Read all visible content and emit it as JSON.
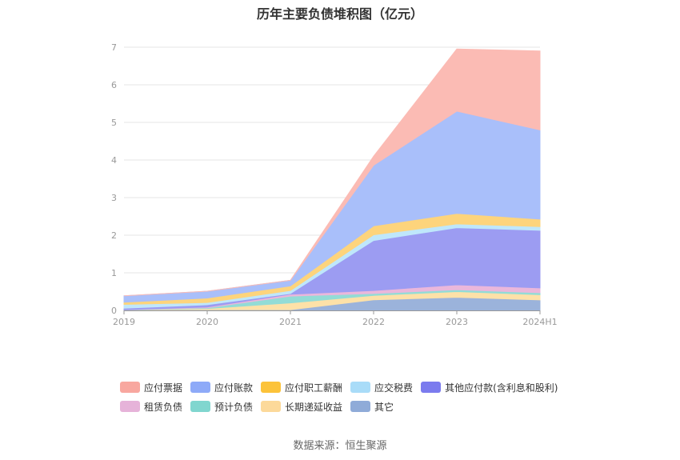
{
  "chart_data": {
    "type": "area",
    "stacked": true,
    "title": "历年主要负债堆积图（亿元）",
    "x": [
      "2019",
      "2020",
      "2021",
      "2022",
      "2023",
      "2024H1"
    ],
    "ylim": [
      0,
      7
    ],
    "yticks": [
      0,
      1,
      2,
      3,
      4,
      5,
      6,
      7
    ],
    "grid": true,
    "legend_position": "bottom",
    "series": [
      {
        "name": "其它",
        "color": "#9bb3db",
        "values": [
          0.02,
          0.02,
          0.02,
          0.28,
          0.35,
          0.28
        ]
      },
      {
        "name": "长期递延收益",
        "color": "#fde1a8",
        "values": [
          0.0,
          0.03,
          0.18,
          0.12,
          0.15,
          0.14
        ]
      },
      {
        "name": "预计负债",
        "color": "#93dcd6",
        "values": [
          0.0,
          0.02,
          0.18,
          0.05,
          0.05,
          0.05
        ]
      },
      {
        "name": "租赁负债",
        "color": "#eab7db",
        "values": [
          0.0,
          0.02,
          0.05,
          0.08,
          0.13,
          0.13
        ]
      },
      {
        "name": "其他应付款(含利息和股利)",
        "color": "#9c9cf2",
        "values": [
          0.04,
          0.06,
          0.02,
          1.33,
          1.52,
          1.53
        ]
      },
      {
        "name": "应交税费",
        "color": "#bfe7fb",
        "values": [
          0.1,
          0.06,
          0.08,
          0.15,
          0.1,
          0.1
        ]
      },
      {
        "name": "应付职工薪酬",
        "color": "#fdd47c",
        "values": [
          0.06,
          0.12,
          0.12,
          0.24,
          0.28,
          0.2
        ]
      },
      {
        "name": "应付账款",
        "color": "#a9bffa",
        "values": [
          0.17,
          0.18,
          0.15,
          1.61,
          2.72,
          2.37
        ]
      },
      {
        "name": "应付票据",
        "color": "#fbbbb4",
        "values": [
          0.0,
          0.0,
          0.0,
          0.24,
          1.65,
          2.1
        ]
      }
    ]
  },
  "legend": {
    "rows": [
      [
        {
          "name": "应付票据",
          "color": "#f8a79f"
        },
        {
          "name": "应付账款",
          "color": "#8eaaf8"
        },
        {
          "name": "应付职工薪酬",
          "color": "#fcc33a"
        },
        {
          "name": "应交税费",
          "color": "#a9dcf8"
        },
        {
          "name": "其他应付款(含利息和股利)",
          "color": "#7b7bee"
        }
      ],
      [
        {
          "name": "租赁负债",
          "color": "#e6b3d9"
        },
        {
          "name": "预计负债",
          "color": "#80d6cf"
        },
        {
          "name": "长期递延收益",
          "color": "#fcd99a"
        },
        {
          "name": "其它",
          "color": "#8fabd8"
        }
      ]
    ]
  },
  "source": "数据来源：恒生聚源"
}
